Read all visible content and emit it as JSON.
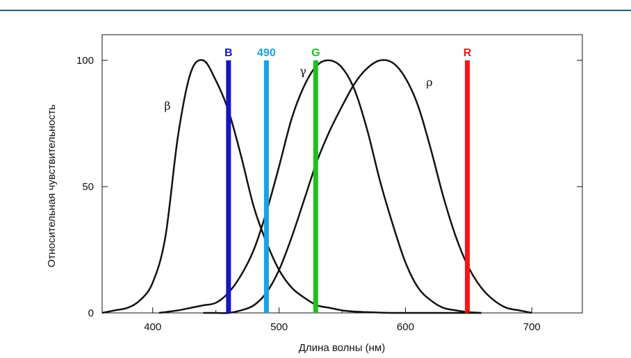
{
  "chart_data": {
    "type": "line",
    "xlabel": "Длина волны (нм)",
    "ylabel": "Относительная чувствительность",
    "xlim": [
      360,
      740
    ],
    "ylim": [
      0,
      100
    ],
    "x_ticks": [
      "400",
      "500",
      "600",
      "700"
    ],
    "y_ticks": [
      "0",
      "50",
      "100"
    ],
    "grid": false,
    "series": [
      {
        "name": "β",
        "x": [
          360,
          370,
          380,
          390,
          400,
          410,
          420,
          430,
          440,
          450,
          460,
          470,
          480,
          490,
          500,
          510,
          520,
          530,
          540,
          550,
          560,
          570,
          580,
          590,
          600,
          610,
          620,
          630,
          640,
          650,
          660
        ],
        "values": [
          0,
          1,
          2,
          5,
          12,
          30,
          70,
          95,
          100,
          92,
          80,
          62,
          42,
          28,
          17,
          10,
          6,
          3,
          2,
          1,
          0.5,
          0.3,
          0.1,
          0,
          0,
          0,
          0,
          0,
          0,
          0,
          0
        ]
      },
      {
        "name": "γ",
        "x": [
          405,
          420,
          430,
          440,
          450,
          460,
          470,
          480,
          490,
          500,
          510,
          520,
          530,
          540,
          550,
          560,
          570,
          580,
          590,
          600,
          610,
          620,
          630,
          640,
          650,
          660
        ],
        "values": [
          0,
          1,
          2,
          3,
          4,
          8,
          15,
          25,
          40,
          58,
          77,
          90,
          98,
          100,
          97,
          88,
          72,
          52,
          35,
          20,
          10,
          5,
          2,
          1,
          0.3,
          0
        ]
      },
      {
        "name": "ρ",
        "x": [
          440,
          450,
          460,
          470,
          480,
          490,
          500,
          510,
          520,
          530,
          540,
          550,
          560,
          570,
          580,
          590,
          600,
          610,
          620,
          630,
          640,
          650,
          660,
          670,
          680,
          690,
          700
        ],
        "values": [
          0,
          0,
          0,
          1,
          3,
          8,
          17,
          30,
          45,
          60,
          72,
          82,
          91,
          97,
          100,
          99,
          93,
          82,
          65,
          46,
          30,
          18,
          10,
          5,
          2,
          1,
          0
        ]
      }
    ],
    "markers": [
      {
        "label": "B",
        "x": 460,
        "color": "#1515c8"
      },
      {
        "label": "490",
        "x": 490,
        "color": "#1aa0e8"
      },
      {
        "label": "G",
        "x": 529,
        "color": "#1ec01e"
      },
      {
        "label": "R",
        "x": 649,
        "color": "#f01818"
      }
    ]
  }
}
